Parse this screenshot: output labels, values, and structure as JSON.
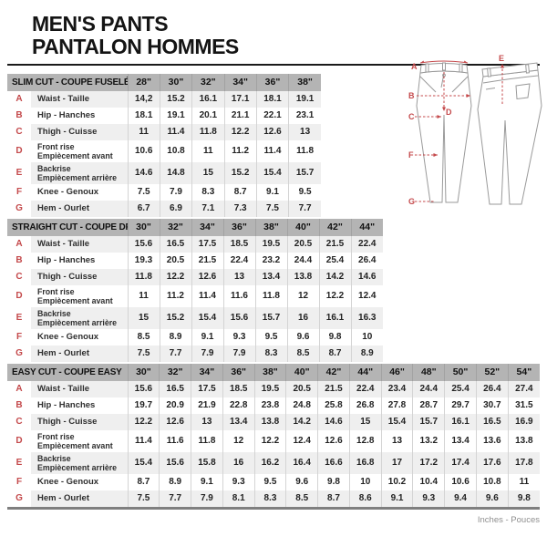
{
  "page": {
    "title_line1": "MEN'S PANTS",
    "title_line2": "PANTALON HOMMES",
    "footer_note": "Inches - Pouces"
  },
  "colors": {
    "accent_red": "#c4494b",
    "header_gray": "#b4b4b4",
    "stripe_gray": "#efefef"
  },
  "diagram": {
    "letters": [
      "A",
      "B",
      "C",
      "D",
      "E",
      "F",
      "G"
    ]
  },
  "tables": [
    {
      "id": "slim",
      "title": "SLIM CUT - COUPE FUSELÉE",
      "sizes": [
        "28\"",
        "30\"",
        "32\"",
        "34\"",
        "36\"",
        "38\""
      ],
      "rows": [
        {
          "letter": "A",
          "label": [
            "Waist - Taille"
          ],
          "values": [
            "14,2",
            "15.2",
            "16.1",
            "17.1",
            "18.1",
            "19.1"
          ]
        },
        {
          "letter": "B",
          "label": [
            "Hip - Hanches"
          ],
          "values": [
            "18.1",
            "19.1",
            "20.1",
            "21.1",
            "22.1",
            "23.1"
          ]
        },
        {
          "letter": "C",
          "label": [
            "Thigh - Cuisse"
          ],
          "values": [
            "11",
            "11.4",
            "11.8",
            "12.2",
            "12.6",
            "13"
          ]
        },
        {
          "letter": "D",
          "label": [
            "Front rise",
            "Empiècement avant"
          ],
          "values": [
            "10.6",
            "10.8",
            "11",
            "11.2",
            "11.4",
            "11.8"
          ]
        },
        {
          "letter": "E",
          "label": [
            "Backrise",
            "Empiècement arrière"
          ],
          "values": [
            "14.6",
            "14.8",
            "15",
            "15.2",
            "15.4",
            "15.7"
          ]
        },
        {
          "letter": "F",
          "label": [
            "Knee - Genoux"
          ],
          "values": [
            "7.5",
            "7.9",
            "8.3",
            "8.7",
            "9.1",
            "9.5"
          ]
        },
        {
          "letter": "G",
          "label": [
            "Hem - Ourlet"
          ],
          "values": [
            "6.7",
            "6.9",
            "7.1",
            "7.3",
            "7.5",
            "7.7"
          ]
        }
      ]
    },
    {
      "id": "straight",
      "title": "STRAIGHT CUT - COUPE DROITE",
      "sizes": [
        "30\"",
        "32\"",
        "34\"",
        "36\"",
        "38\"",
        "40\"",
        "42\"",
        "44\""
      ],
      "rows": [
        {
          "letter": "A",
          "label": [
            "Waist - Taille"
          ],
          "values": [
            "15.6",
            "16.5",
            "17.5",
            "18.5",
            "19.5",
            "20.5",
            "21.5",
            "22.4"
          ]
        },
        {
          "letter": "B",
          "label": [
            "Hip - Hanches"
          ],
          "values": [
            "19.3",
            "20.5",
            "21.5",
            "22.4",
            "23.2",
            "24.4",
            "25.4",
            "26.4"
          ]
        },
        {
          "letter": "C",
          "label": [
            "Thigh - Cuisse"
          ],
          "values": [
            "11.8",
            "12.2",
            "12.6",
            "13",
            "13.4",
            "13.8",
            "14.2",
            "14.6"
          ]
        },
        {
          "letter": "D",
          "label": [
            "Front rise",
            "Empiècement avant"
          ],
          "values": [
            "11",
            "11.2",
            "11.4",
            "11.6",
            "11.8",
            "12",
            "12.2",
            "12.4"
          ]
        },
        {
          "letter": "E",
          "label": [
            "Backrise",
            "Empiècement arrière"
          ],
          "values": [
            "15",
            "15.2",
            "15.4",
            "15.6",
            "15.7",
            "16",
            "16.1",
            "16.3"
          ]
        },
        {
          "letter": "F",
          "label": [
            "Knee - Genoux"
          ],
          "values": [
            "8.5",
            "8.9",
            "9.1",
            "9.3",
            "9.5",
            "9.6",
            "9.8",
            "10"
          ]
        },
        {
          "letter": "G",
          "label": [
            "Hem - Ourlet"
          ],
          "values": [
            "7.5",
            "7.7",
            "7.9",
            "7.9",
            "8.3",
            "8.5",
            "8.7",
            "8.9"
          ]
        }
      ]
    },
    {
      "id": "easy",
      "title": "EASY CUT - COUPE EASY",
      "sizes": [
        "30\"",
        "32\"",
        "34\"",
        "36\"",
        "38\"",
        "40\"",
        "42\"",
        "44\"",
        "46\"",
        "48\"",
        "50\"",
        "52\"",
        "54\""
      ],
      "rows": [
        {
          "letter": "A",
          "label": [
            "Waist - Taille"
          ],
          "values": [
            "15.6",
            "16.5",
            "17.5",
            "18.5",
            "19.5",
            "20.5",
            "21.5",
            "22.4",
            "23.4",
            "24.4",
            "25.4",
            "26.4",
            "27.4"
          ]
        },
        {
          "letter": "B",
          "label": [
            "Hip - Hanches"
          ],
          "values": [
            "19.7",
            "20.9",
            "21.9",
            "22.8",
            "23.8",
            "24.8",
            "25.8",
            "26.8",
            "27.8",
            "28.7",
            "29.7",
            "30.7",
            "31.5"
          ]
        },
        {
          "letter": "C",
          "label": [
            "Thigh - Cuisse"
          ],
          "values": [
            "12.2",
            "12.6",
            "13",
            "13.4",
            "13.8",
            "14.2",
            "14.6",
            "15",
            "15.4",
            "15.7",
            "16.1",
            "16.5",
            "16.9"
          ]
        },
        {
          "letter": "D",
          "label": [
            "Front rise",
            "Empiècement avant"
          ],
          "values": [
            "11.4",
            "11.6",
            "11.8",
            "12",
            "12.2",
            "12.4",
            "12.6",
            "12.8",
            "13",
            "13.2",
            "13.4",
            "13.6",
            "13.8"
          ]
        },
        {
          "letter": "E",
          "label": [
            "Backrise",
            "Empiècement arrière"
          ],
          "values": [
            "15.4",
            "15.6",
            "15.8",
            "16",
            "16.2",
            "16.4",
            "16.6",
            "16.8",
            "17",
            "17.2",
            "17.4",
            "17.6",
            "17.8"
          ]
        },
        {
          "letter": "F",
          "label": [
            "Knee - Genoux"
          ],
          "values": [
            "8.7",
            "8.9",
            "9.1",
            "9.3",
            "9.5",
            "9.6",
            "9.8",
            "10",
            "10.2",
            "10.4",
            "10.6",
            "10.8",
            "11"
          ]
        },
        {
          "letter": "G",
          "label": [
            "Hem - Ourlet"
          ],
          "values": [
            "7.5",
            "7.7",
            "7.9",
            "8.1",
            "8.3",
            "8.5",
            "8.7",
            "8.6",
            "9.1",
            "9.3",
            "9.4",
            "9.6",
            "9.8"
          ]
        }
      ]
    }
  ]
}
